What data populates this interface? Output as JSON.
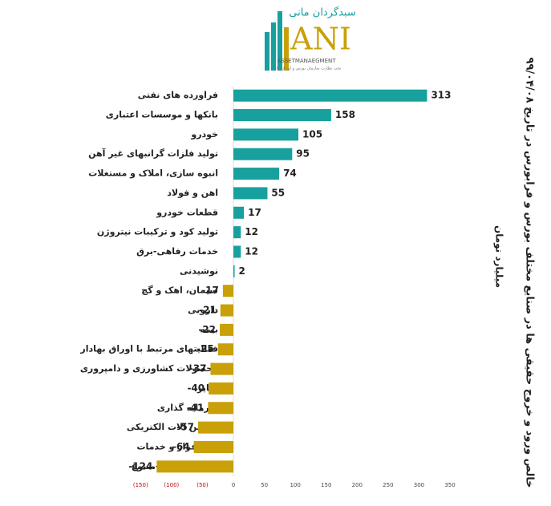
{
  "logo": {
    "brand": "سبدگردان مانی",
    "mark": "ANI",
    "subtitle": "ASSETMANAEGMENT",
    "tagline": "تحت نظارت سازمان بورس و اوراق بهادار"
  },
  "chart_data": {
    "type": "bar",
    "orientation": "horizontal",
    "title": "خالص ورود و خروج حقیقی ها در صنایع مختلف بورس و فرابورس در تاریخ ۹۹/۰۴/۰۸",
    "subtitle": "میلیارد تومان",
    "categories": [
      "فراورده های نفتی",
      "بانکها و موسسات اعتباری",
      "خودرو",
      "تولید فلزات گرانبهای غیر آهن",
      "انبوه سازی، املاک و مستغلات",
      "اهن و فولاد",
      "قطعات خودرو",
      "تولید کود و ترکیبات نیتروژن",
      "خدمات رفاهی-برق",
      "نوشیدنی",
      "سیمان، اهک و گچ",
      "دارویی",
      "بیمه",
      "فعالیتهای مرتبط با اوراق بهادار",
      "محصولات کشاورزی و دامپروری",
      "سایر",
      "سرمایه گذاری",
      "ماشین الات الکتریکی",
      "نرم افزار و خدمات",
      "مواد شیمیایی-متنوع"
    ],
    "values": [
      313,
      158,
      105,
      95,
      74,
      55,
      17,
      12,
      12,
      2,
      -17,
      -21,
      -22,
      -25,
      -37,
      -40,
      -41,
      -57,
      -64,
      -124
    ],
    "positive_color": "#17a09e",
    "negative_color": "#c9a008",
    "negative_tick_color": "#c00000",
    "xlim": [
      -150,
      350
    ],
    "xticks": [
      {
        "value": -150,
        "label": "(150)"
      },
      {
        "value": -100,
        "label": "(100)"
      },
      {
        "value": -50,
        "label": "(50)"
      },
      0,
      50,
      100,
      150,
      200,
      250,
      300,
      350
    ]
  }
}
